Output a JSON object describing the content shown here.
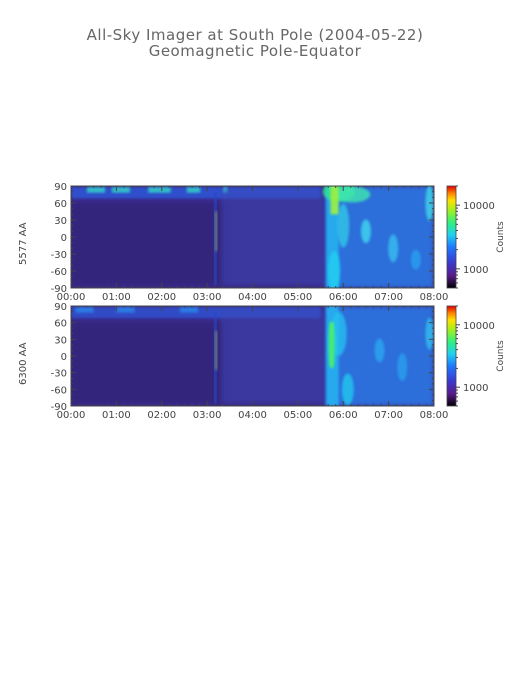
{
  "title": "All-Sky Imager at South Pole (2004-05-22)",
  "subtitle": "Geomagnetic Pole-Equator",
  "colors": {
    "background": "#3a2a8c",
    "axis": "#555555"
  },
  "chart_data": [
    {
      "type": "heatmap",
      "ylabel": "5577 AA",
      "colorbar_label": "Counts",
      "colorbar_scale": "log",
      "colorbar_range": [
        500,
        20000
      ],
      "colorbar_ticks": [
        "10000",
        "1000"
      ],
      "colorbar_tick_values": [
        10000,
        1000
      ],
      "x_tick_labels": [
        "00:00",
        "01:00",
        "02:00",
        "03:00",
        "04:00",
        "05:00",
        "06:00",
        "07:00",
        "08:00"
      ],
      "x_range_hours": [
        0,
        8
      ],
      "y_tick_labels": [
        "90",
        "60",
        "30",
        "0",
        "-30",
        "-60",
        "-90"
      ],
      "y_tick_values": [
        90,
        60,
        30,
        0,
        -30,
        -60,
        -90
      ],
      "y_range": [
        -90,
        90
      ]
    },
    {
      "type": "heatmap",
      "ylabel": "6300 AA",
      "colorbar_label": "Counts",
      "colorbar_scale": "log",
      "colorbar_range": [
        500,
        20000
      ],
      "colorbar_ticks": [
        "10000",
        "1000"
      ],
      "colorbar_tick_values": [
        10000,
        1000
      ],
      "x_tick_labels": [
        "00:00",
        "01:00",
        "02:00",
        "03:00",
        "04:00",
        "05:00",
        "06:00",
        "07:00",
        "08:00"
      ],
      "x_range_hours": [
        0,
        8
      ],
      "y_tick_labels": [
        "90",
        "60",
        "30",
        "0",
        "-30",
        "-60",
        "-90"
      ],
      "y_tick_values": [
        90,
        60,
        30,
        0,
        -30,
        -60,
        -90
      ],
      "y_range": [
        -90,
        90
      ]
    }
  ]
}
